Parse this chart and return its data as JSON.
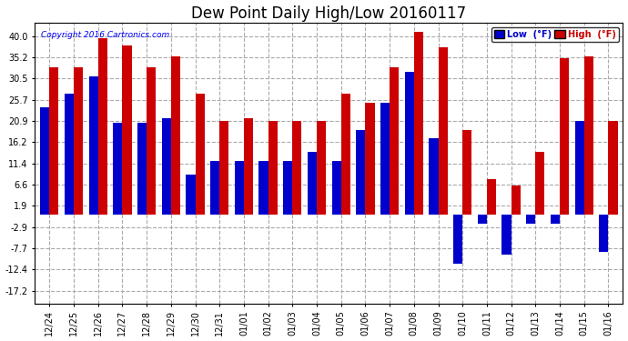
{
  "title": "Dew Point Daily High/Low 20160117",
  "copyright": "Copyright 2016 Cartronics.com",
  "dates": [
    "12/24",
    "12/25",
    "12/26",
    "12/27",
    "12/28",
    "12/29",
    "12/30",
    "12/31",
    "01/01",
    "01/02",
    "01/03",
    "01/04",
    "01/05",
    "01/06",
    "01/07",
    "01/08",
    "01/09",
    "01/10",
    "01/11",
    "01/12",
    "01/13",
    "01/14",
    "01/15",
    "01/16"
  ],
  "low_values": [
    24.0,
    27.0,
    31.0,
    20.5,
    20.5,
    21.5,
    9.0,
    12.0,
    12.0,
    12.0,
    12.0,
    14.0,
    12.0,
    19.0,
    25.0,
    32.0,
    17.0,
    -11.0,
    -2.0,
    -9.0,
    -2.0,
    -2.0,
    21.0,
    -8.5
  ],
  "high_values": [
    33.0,
    33.0,
    39.5,
    38.0,
    33.0,
    35.5,
    27.0,
    21.0,
    21.5,
    21.0,
    21.0,
    21.0,
    27.0,
    25.0,
    33.0,
    41.0,
    37.5,
    19.0,
    8.0,
    6.5,
    14.0,
    35.0,
    35.5,
    21.0
  ],
  "low_color": "#0000cc",
  "high_color": "#cc0000",
  "yticks": [
    -17.2,
    -12.4,
    -7.7,
    -2.9,
    1.9,
    6.6,
    11.4,
    16.2,
    20.9,
    25.7,
    30.5,
    35.2,
    40.0
  ],
  "ylim": [
    -20,
    43
  ],
  "background_color": "#ffffff",
  "plot_bg_color": "#ffffff",
  "grid_color": "#aaaaaa",
  "bar_width": 0.38,
  "title_fontsize": 12,
  "tick_fontsize": 7
}
